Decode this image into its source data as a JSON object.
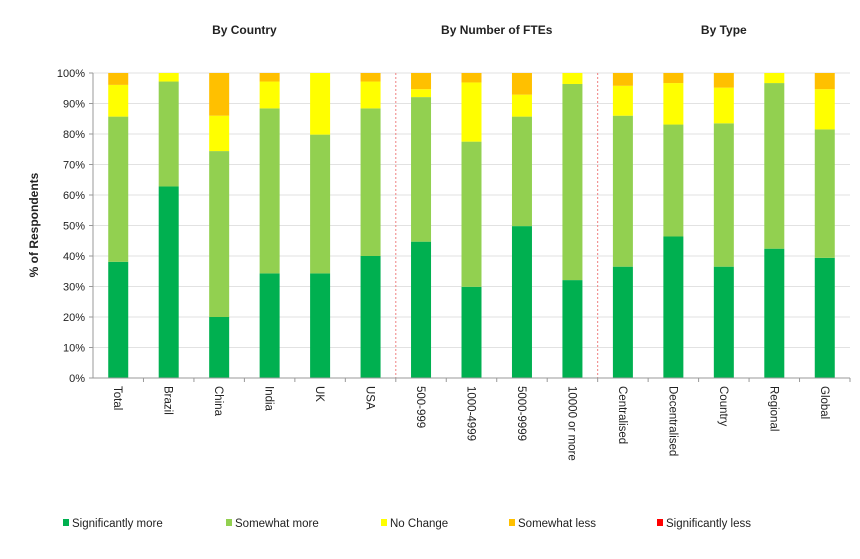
{
  "chart_data": {
    "type": "bar",
    "stacked": true,
    "ylabel": "% of Respondents",
    "ylim": [
      0,
      100
    ],
    "yticks": [
      "0%",
      "10%",
      "20%",
      "30%",
      "40%",
      "50%",
      "60%",
      "70%",
      "80%",
      "90%",
      "100%"
    ],
    "grid": true,
    "legend_position": "bottom",
    "groups": [
      {
        "title": "By Country",
        "categories": [
          "Total",
          "Brazil",
          "China",
          "India",
          "UK",
          "USA"
        ]
      },
      {
        "title": "By Number of FTEs",
        "categories": [
          "500-999",
          "1000-4999",
          "5000-9999",
          "10000 or more"
        ]
      },
      {
        "title": "By Type",
        "categories": [
          "Centralised",
          "Decentralised",
          "Country",
          "Regional",
          "Global"
        ]
      }
    ],
    "categories": [
      "Total",
      "Brazil",
      "China",
      "India",
      "UK",
      "USA",
      "500-999",
      "1000-4999",
      "5000-9999",
      "10000 or more",
      "Centralised",
      "Decentralised",
      "Country",
      "Regional",
      "Global"
    ],
    "series": [
      {
        "name": "Significantly more",
        "color": "#00B050",
        "values": [
          38.1,
          62.8,
          20.0,
          34.3,
          34.3,
          40.0,
          44.7,
          29.9,
          49.8,
          32.1,
          36.5,
          46.4,
          36.5,
          42.4,
          39.4
        ]
      },
      {
        "name": "Somewhat more",
        "color": "#92D050",
        "values": [
          47.6,
          34.4,
          54.4,
          54.1,
          45.5,
          48.4,
          47.4,
          47.6,
          35.9,
          64.3,
          49.5,
          36.7,
          47.0,
          54.3,
          42.1
        ]
      },
      {
        "name": "No Change",
        "color": "#FFFF00",
        "values": [
          10.4,
          2.8,
          11.6,
          8.8,
          20.2,
          8.8,
          2.6,
          19.4,
          7.2,
          3.6,
          9.8,
          13.6,
          11.7,
          3.3,
          13.2
        ]
      },
      {
        "name": "Somewhat less",
        "color": "#FFC000",
        "values": [
          3.9,
          0,
          14.0,
          2.8,
          0,
          2.8,
          5.3,
          3.1,
          7.1,
          0,
          4.2,
          3.3,
          4.8,
          0,
          5.3
        ]
      },
      {
        "name": "Significantly less",
        "color": "#FF0000",
        "values": [
          0,
          0,
          0,
          0,
          0,
          0,
          0,
          0,
          0,
          0,
          0,
          0,
          0,
          0,
          0
        ]
      }
    ]
  }
}
